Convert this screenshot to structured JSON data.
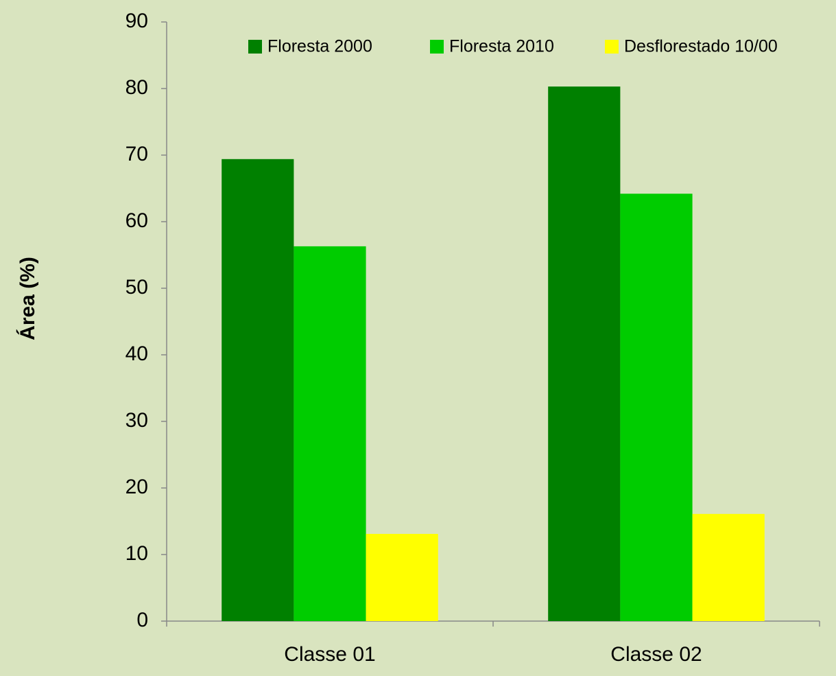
{
  "chart_data": {
    "type": "bar",
    "y_axis_label": "Área (%)",
    "categories": [
      "Classe 01",
      "Classe 02"
    ],
    "series": [
      {
        "name": "Floresta 2000",
        "color": "#008000",
        "values": [
          69.4,
          80.3
        ]
      },
      {
        "name": "Floresta 2010",
        "color": "#00cc00",
        "values": [
          56.3,
          64.2
        ]
      },
      {
        "name": "Desflorestado 10/00",
        "color": "#ffff00",
        "values": [
          13.1,
          16.1
        ]
      }
    ],
    "ylim": [
      0,
      90
    ],
    "yticks": [
      0,
      10,
      20,
      30,
      40,
      50,
      60,
      70,
      80,
      90
    ],
    "legend": "top-right",
    "grid": false
  }
}
